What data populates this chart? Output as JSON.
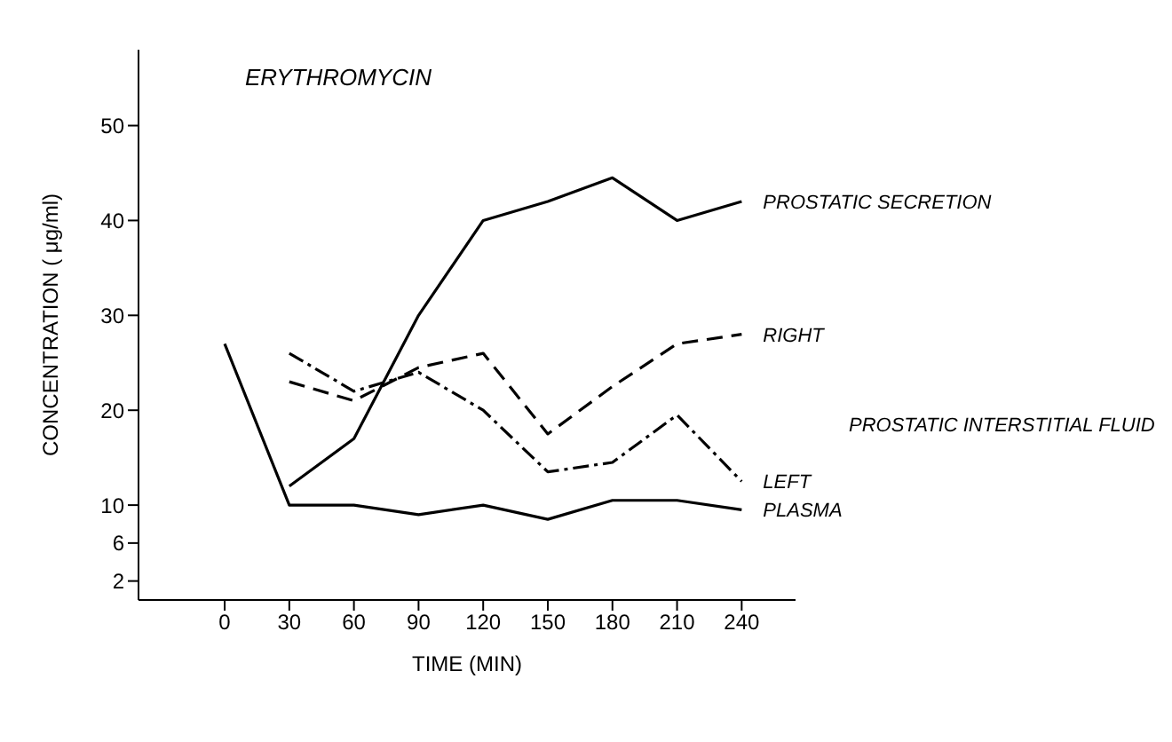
{
  "chart_data": {
    "type": "line",
    "title": "ERYTHROMYCIN",
    "xlabel": "TIME (MIN)",
    "ylabel": "CONCENTRATION ( μg/ml)",
    "x": [
      0,
      30,
      60,
      90,
      120,
      150,
      180,
      210,
      240
    ],
    "xlim": [
      -40,
      265
    ],
    "xticks": [
      0,
      30,
      60,
      90,
      120,
      150,
      180,
      210,
      240
    ],
    "ylim": [
      0,
      58
    ],
    "yticks": [
      2,
      6,
      10,
      20,
      30,
      40,
      50
    ],
    "grid": false,
    "legend": false,
    "marker": "none",
    "annotations": [
      "PROSTATIC INTERSTITIAL FLUID"
    ],
    "series": [
      {
        "name": "PROSTATIC SECRETION",
        "color": "#000000",
        "line_style": "solid",
        "values": [
          null,
          12,
          17,
          30,
          40,
          42,
          44.5,
          40,
          42
        ]
      },
      {
        "name": "RIGHT",
        "color": "#000000",
        "line_style": "dashed",
        "values": [
          null,
          23,
          21,
          24.5,
          26,
          17.5,
          22.5,
          27,
          28
        ]
      },
      {
        "name": "LEFT",
        "color": "#000000",
        "line_style": "dotted",
        "values": [
          null,
          26,
          22,
          24,
          20,
          13.5,
          14.5,
          19.5,
          12.5
        ]
      },
      {
        "name": "PLASMA",
        "color": "#000000",
        "line_style": "solid",
        "values": [
          27,
          10,
          10,
          9,
          10,
          8.5,
          10.5,
          10.5,
          9.5
        ]
      }
    ]
  }
}
